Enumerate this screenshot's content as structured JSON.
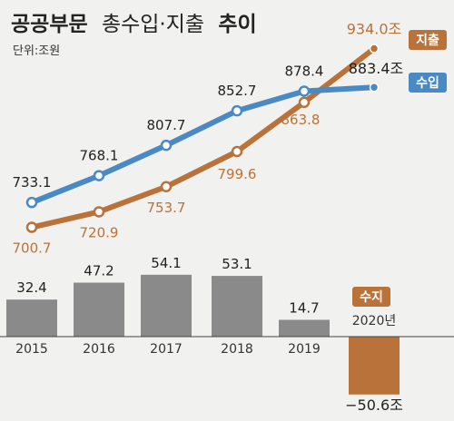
{
  "title": {
    "part1": "공공부문",
    "part2": "총수입·지출",
    "part3": "추이"
  },
  "unit_label": "단위:조원",
  "chart_data": [
    {
      "type": "line",
      "categories": [
        "2015",
        "2016",
        "2017",
        "2018",
        "2019",
        "2020년"
      ],
      "series": [
        {
          "name": "수입",
          "values": [
            733.1,
            768.1,
            807.7,
            852.7,
            878.4,
            883.4
          ],
          "labels": [
            "733.1",
            "768.1",
            "807.7",
            "852.7",
            "878.4",
            "883.4조"
          ],
          "color": "#4a8ac4"
        },
        {
          "name": "지출",
          "values": [
            700.7,
            720.9,
            753.7,
            799.6,
            863.8,
            934.0
          ],
          "labels": [
            "700.7",
            "720.9",
            "753.7",
            "799.6",
            "863.8",
            "934.0조"
          ],
          "color": "#b8723a"
        }
      ],
      "ylim": [
        680,
        950
      ]
    },
    {
      "type": "bar",
      "name": "수지",
      "categories": [
        "2015",
        "2016",
        "2017",
        "2018",
        "2019",
        "2020년"
      ],
      "values": [
        32.4,
        47.2,
        54.1,
        53.1,
        14.7,
        -50.6
      ],
      "labels": [
        "32.4",
        "47.2",
        "54.1",
        "53.1",
        "14.7",
        "−50.6조"
      ],
      "colors": {
        "positive": "#8a8a8a",
        "negative": "#b8723a"
      },
      "ylim": [
        -60,
        60
      ]
    }
  ],
  "colors": {
    "background": "#f1f1ef",
    "text": "#222222",
    "axis": "#444444"
  }
}
